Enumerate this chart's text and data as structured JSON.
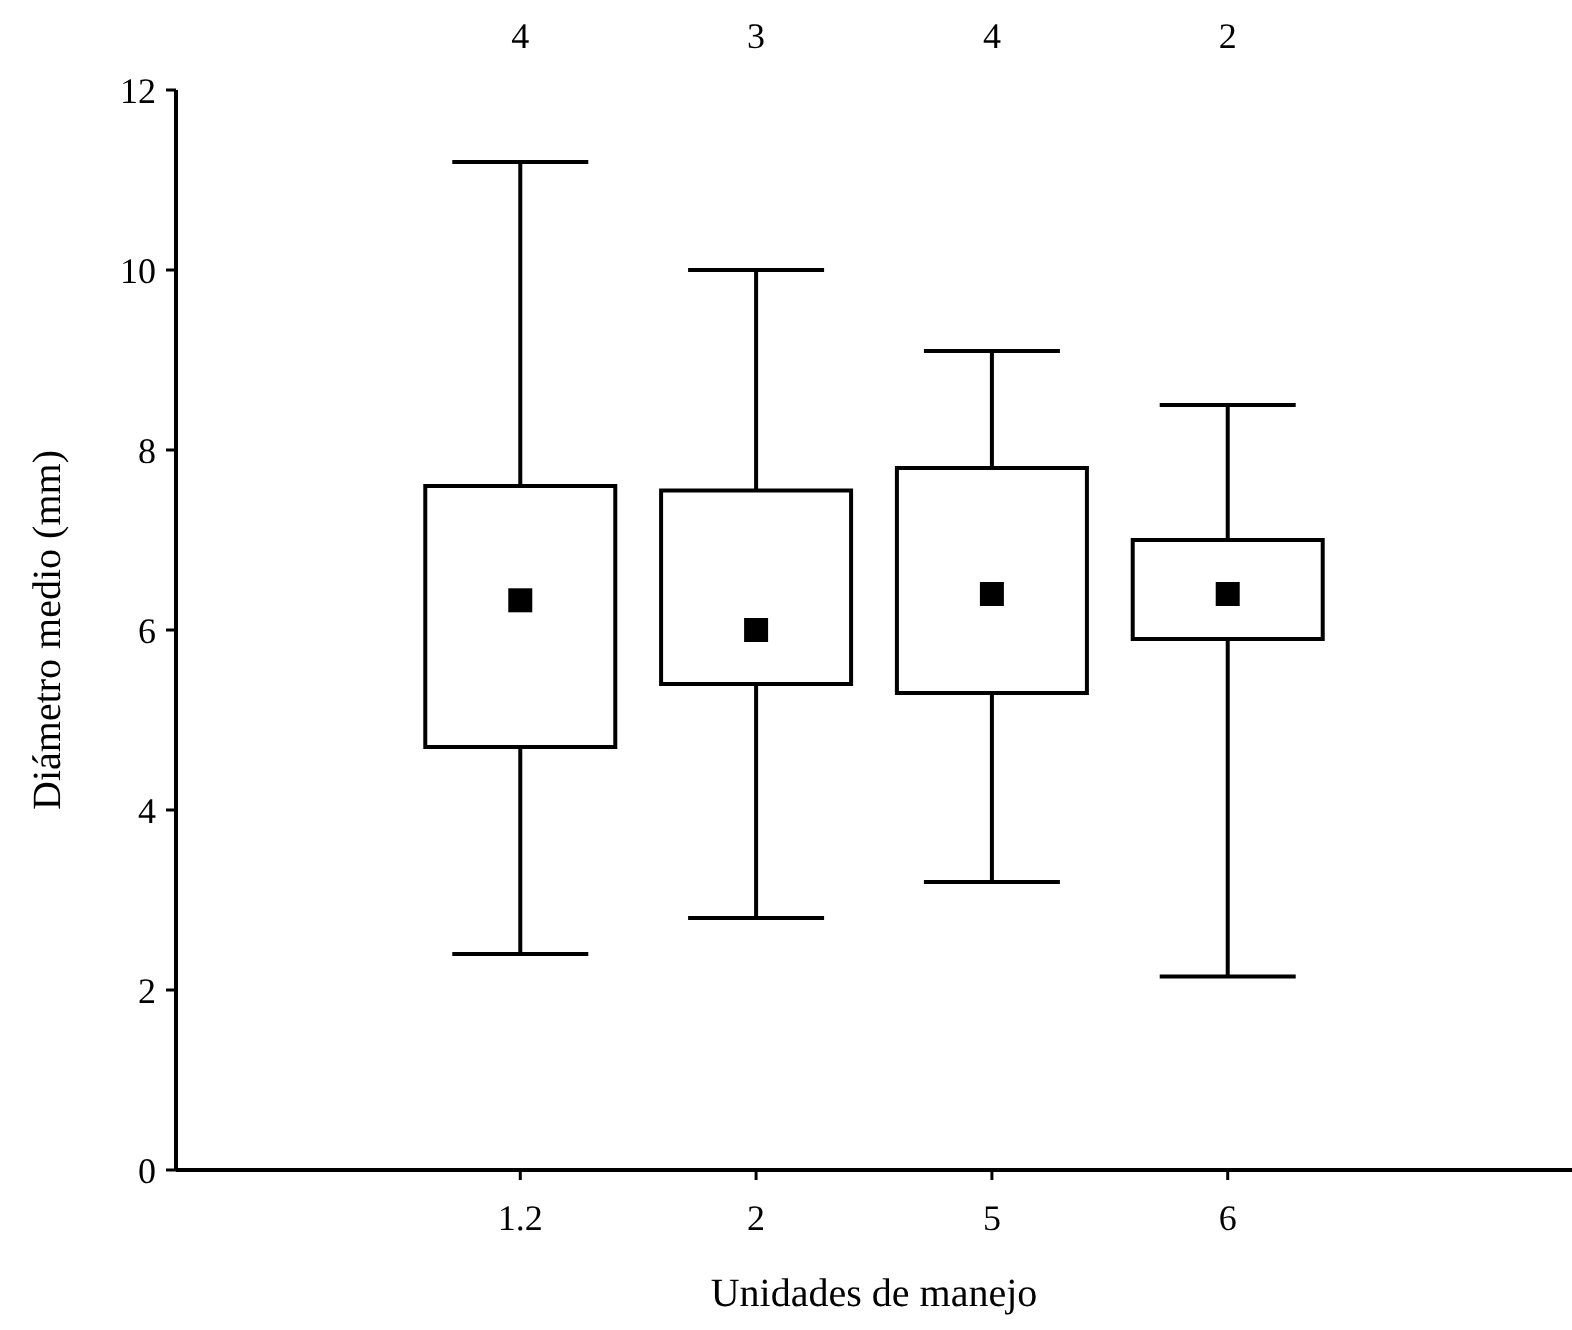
{
  "chart_data": {
    "type": "box",
    "xlabel": "Unidades de manejo",
    "ylabel": "Diámetro medio (mm)",
    "categories": [
      "1.2",
      "2",
      "5",
      "6"
    ],
    "boxes": [
      {
        "low": 2.4,
        "q1": 4.7,
        "median": 6.33,
        "q3": 7.6,
        "high": 11.2
      },
      {
        "low": 2.8,
        "q1": 5.4,
        "median": 6.0,
        "q3": 7.55,
        "high": 10.0
      },
      {
        "low": 3.2,
        "q1": 5.3,
        "median": 6.4,
        "q3": 7.8,
        "high": 9.1
      },
      {
        "low": 2.15,
        "q1": 5.9,
        "median": 6.4,
        "q3": 7.0,
        "high": 8.5
      }
    ],
    "color": "#000000",
    "marker": "square",
    "ylim": [
      0,
      12
    ],
    "yticks": [
      0,
      2,
      4,
      6,
      8,
      10,
      12
    ],
    "grid": false,
    "annotations": [
      "4",
      "3",
      "4",
      "2"
    ]
  }
}
